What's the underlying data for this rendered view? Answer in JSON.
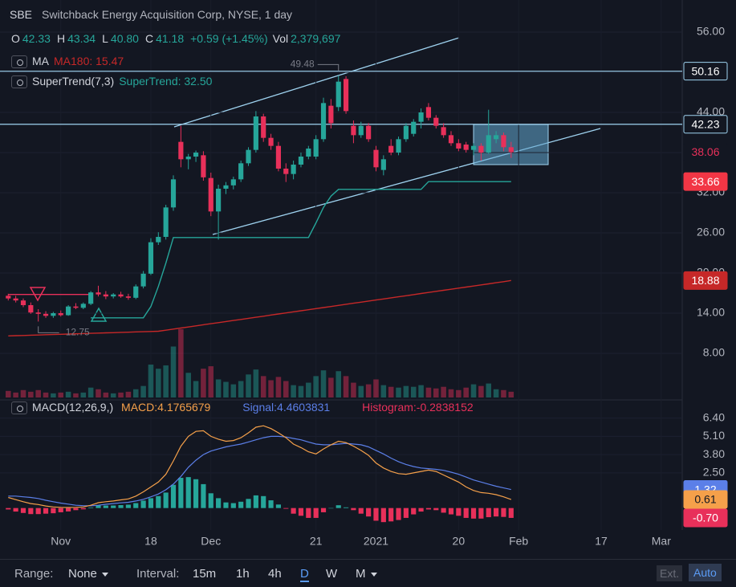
{
  "header": {
    "symbol": "SBE",
    "description": "Switchback Energy Acquisition Corp, NYSE, 1 day",
    "ohlc": [
      {
        "label": "O",
        "value": "42.33"
      },
      {
        "label": "H",
        "value": "43.34"
      },
      {
        "label": "L",
        "value": "40.80"
      },
      {
        "label": "C",
        "value": "41.18"
      }
    ],
    "change": "+0.59 (+1.45%)",
    "vol_label": "Vol",
    "vol": "2,379,697",
    "indicators": [
      {
        "name": "MA",
        "value": "MA180: 15.47",
        "color": "#c62828"
      },
      {
        "name": "SuperTrend(7,3)",
        "value": "SuperTrend: 32.50",
        "color": "#26a69a"
      }
    ]
  },
  "chart_data": [
    {
      "type": "candlestick",
      "xlim": [
        -1.1,
        89.8
      ],
      "xticks": [
        {
          "value": 7,
          "label": "Nov"
        },
        {
          "value": 19,
          "label": "18"
        },
        {
          "value": 27,
          "label": "Dec"
        },
        {
          "value": 41,
          "label": "21"
        },
        {
          "value": 49,
          "label": "2021"
        },
        {
          "value": 60,
          "label": "20"
        },
        {
          "value": 68,
          "label": "Feb"
        },
        {
          "value": 79,
          "label": "17"
        },
        {
          "value": 87,
          "label": "Mar"
        }
      ],
      "ylim": [
        1.16,
        60.8
      ],
      "yticks": [
        {
          "value": 8,
          "label": "8.00"
        },
        {
          "value": 14,
          "label": "14.00"
        },
        {
          "value": 20,
          "label": "20.00"
        },
        {
          "value": 26,
          "label": "26.00"
        },
        {
          "value": 32,
          "label": "32.00"
        },
        {
          "value": 38,
          "label": "38.00"
        },
        {
          "value": 44,
          "label": "44.00"
        },
        {
          "value": 50,
          "label": "50.00"
        },
        {
          "value": 56,
          "label": "56.00"
        }
      ],
      "up_color": "#26a69a",
      "down_color": "#e8305a",
      "open": [
        16.6,
        16.2,
        15.9,
        15.2,
        14.1,
        13.9,
        13.6,
        14.0,
        13.7,
        15.0,
        14.8,
        15.4,
        17.1,
        16.8,
        16.5,
        16.8,
        16.5,
        16.3,
        18.0,
        19.9,
        24.6,
        25.4,
        29.8,
        39.6,
        37.0,
        37.4,
        37.6,
        34.2,
        29.2,
        32.6,
        33.1,
        34.0,
        36.4,
        38.4,
        43.4,
        40.2,
        39.0,
        35.6,
        34.8,
        36.2,
        37.4,
        37.4,
        40.0,
        45.0,
        44.8,
        49.0,
        42.0,
        40.6,
        42.0,
        38.4,
        35.4,
        39.0,
        38.0,
        40.0,
        40.8,
        42.6,
        44.8,
        43.2,
        41.8,
        40.6,
        39.4,
        39.2,
        38.4,
        39.0,
        38.0,
        40.0,
        40.6,
        38.8
      ],
      "high": [
        16.9,
        16.6,
        16.2,
        15.6,
        14.6,
        14.3,
        14.2,
        14.4,
        15.2,
        15.5,
        15.6,
        17.3,
        18.1,
        17.3,
        17.0,
        17.2,
        16.9,
        18.3,
        20.3,
        25.2,
        26.1,
        30.2,
        34.6,
        42.0,
        37.8,
        38.3,
        38.2,
        35.0,
        33.2,
        33.6,
        34.4,
        36.8,
        38.8,
        44.2,
        43.8,
        40.8,
        39.6,
        36.4,
        36.8,
        38.0,
        39.0,
        40.6,
        46.2,
        46.0,
        49.48,
        49.4,
        42.8,
        42.6,
        42.4,
        39.0,
        37.6,
        40.0,
        40.4,
        42.4,
        43.0,
        44.6,
        45.4,
        43.6,
        42.4,
        41.2,
        40.0,
        39.6,
        39.4,
        39.4,
        44.4,
        41.2,
        41.0,
        39.6
      ],
      "low": [
        15.9,
        15.6,
        14.9,
        13.9,
        12.75,
        13.3,
        13.3,
        13.5,
        13.6,
        14.6,
        14.6,
        15.2,
        16.5,
        16.1,
        16.2,
        16.3,
        16.0,
        16.1,
        17.7,
        19.7,
        24.2,
        25.0,
        29.3,
        35.8,
        35.5,
        36.6,
        33.8,
        28.5,
        25.0,
        31.8,
        32.5,
        33.6,
        36.0,
        38.0,
        39.6,
        38.4,
        35.2,
        33.6,
        34.0,
        35.8,
        37.0,
        37.0,
        39.6,
        41.6,
        44.2,
        43.8,
        39.4,
        40.2,
        39.6,
        35.2,
        34.6,
        37.6,
        37.6,
        39.6,
        40.4,
        41.6,
        42.8,
        41.6,
        40.2,
        39.0,
        38.2,
        38.0,
        37.6,
        36.8,
        37.8,
        39.4,
        38.2,
        37.2
      ],
      "close": [
        16.2,
        15.9,
        15.2,
        14.1,
        13.9,
        13.6,
        14.0,
        13.7,
        15.0,
        14.8,
        15.4,
        17.1,
        16.8,
        16.5,
        16.8,
        16.5,
        16.3,
        18.0,
        19.9,
        24.6,
        25.4,
        29.8,
        34.0,
        37.0,
        37.4,
        38.0,
        34.3,
        29.2,
        32.6,
        33.1,
        34.0,
        36.4,
        38.4,
        43.4,
        40.2,
        39.0,
        35.6,
        34.8,
        36.2,
        37.4,
        38.6,
        40.0,
        45.4,
        42.4,
        48.6,
        44.2,
        40.6,
        42.0,
        40.0,
        35.8,
        37.0,
        38.0,
        40.0,
        42.0,
        42.6,
        44.0,
        43.2,
        42.0,
        40.6,
        39.4,
        38.6,
        38.4,
        39.0,
        38.0,
        40.6,
        40.6,
        38.8,
        38.06
      ],
      "volume": [
        0.8,
        0.6,
        0.9,
        0.7,
        0.9,
        0.6,
        0.5,
        0.6,
        0.7,
        0.5,
        0.6,
        1.2,
        1.0,
        0.6,
        0.5,
        0.6,
        0.7,
        1.0,
        1.4,
        4.0,
        3.5,
        3.9,
        6.2,
        8.3,
        3.0,
        2.0,
        3.5,
        3.8,
        2.2,
        1.9,
        1.6,
        2.0,
        2.8,
        3.4,
        2.6,
        2.1,
        2.5,
        2.0,
        1.5,
        1.4,
        1.8,
        2.6,
        3.3,
        2.4,
        3.2,
        2.6,
        1.8,
        1.4,
        1.6,
        2.2,
        1.5,
        1.3,
        1.2,
        1.4,
        1.3,
        1.5,
        1.2,
        1.1,
        1.3,
        1.0,
        0.9,
        1.2,
        1.6,
        1.4,
        1.7,
        1.0,
        0.9,
        0.7
      ],
      "ma": {
        "color": "#c62828",
        "values": [
          10.6,
          10.64,
          10.67,
          10.71,
          10.74,
          10.78,
          10.81,
          10.85,
          10.88,
          10.92,
          10.95,
          10.99,
          11.02,
          11.06,
          11.09,
          11.13,
          11.16,
          11.2,
          11.23,
          11.27,
          11.3,
          11.46,
          11.62,
          11.78,
          11.94,
          12.11,
          12.27,
          12.43,
          12.59,
          12.75,
          12.91,
          13.07,
          13.23,
          13.39,
          13.55,
          13.72,
          13.88,
          14.04,
          14.2,
          14.36,
          14.52,
          14.68,
          14.84,
          15.0,
          15.16,
          15.33,
          15.49,
          15.65,
          15.81,
          15.97,
          16.13,
          16.29,
          16.45,
          16.61,
          16.77,
          16.94,
          17.1,
          17.26,
          17.42,
          17.58,
          17.74,
          17.9,
          18.06,
          18.22,
          18.38,
          18.55,
          18.71,
          18.88
        ]
      },
      "supertrend_up": {
        "color": "#26a69a",
        "values": [
          null,
          null,
          null,
          null,
          null,
          null,
          null,
          null,
          null,
          null,
          null,
          13.3,
          13.3,
          13.3,
          13.3,
          13.3,
          13.3,
          13.3,
          13.3,
          15.0,
          18.0,
          21.5,
          25.3,
          25.3,
          25.3,
          25.3,
          25.3,
          25.3,
          25.3,
          25.3,
          25.3,
          25.3,
          25.3,
          25.3,
          25.3,
          25.3,
          25.3,
          25.3,
          25.3,
          25.3,
          25.3,
          27.5,
          29.8,
          31.5,
          32.5,
          32.5,
          32.5,
          32.5,
          32.5,
          32.5,
          32.5,
          32.5,
          32.5,
          32.5,
          32.5,
          32.5,
          33.66,
          33.66,
          33.66,
          33.66,
          33.66,
          33.66,
          33.66,
          33.66,
          33.66,
          33.66,
          33.66,
          33.66
        ]
      },
      "supertrend_down": {
        "color": "#e8305a",
        "values": [
          16.8,
          16.8,
          16.8,
          16.8,
          16.8,
          16.8,
          16.8,
          16.8,
          16.8,
          16.8,
          16.8,
          16.8,
          null,
          null,
          null,
          null,
          null,
          null,
          null,
          null,
          null,
          null,
          null,
          null,
          null,
          null,
          null,
          null,
          null,
          null,
          null,
          null,
          null,
          null,
          null,
          null,
          null,
          null,
          null,
          null,
          null,
          null,
          null,
          null,
          null,
          null,
          null,
          null,
          null,
          null,
          null,
          null,
          null,
          null,
          null,
          null,
          null,
          null,
          null,
          null,
          null,
          null,
          null,
          null,
          null,
          null,
          null,
          null
        ]
      },
      "price_lines": [
        {
          "value": 50.16,
          "color": "#9fd3f0"
        },
        {
          "value": 42.23,
          "color": "#9fd3f0"
        }
      ]
    },
    {
      "type": "macd",
      "title": "MACD(12,26,9,)",
      "macd_text": "MACD:4.1765679",
      "signal_text": "Signal:4.4603831",
      "histogram_text": "Histogram:-0.2838152",
      "ylim": [
        -1.56,
        7.69
      ],
      "yticks": [
        {
          "value": 2.5,
          "label": "2.50"
        },
        {
          "value": 3.8,
          "label": "3.80"
        },
        {
          "value": 5.1,
          "label": "5.10"
        },
        {
          "value": 6.4,
          "label": "6.40"
        }
      ],
      "macd": {
        "color": "#f5a04a",
        "values": [
          0.75,
          0.6,
          0.45,
          0.32,
          0.25,
          0.15,
          0.08,
          0.05,
          0.04,
          0.05,
          0.08,
          0.2,
          0.38,
          0.45,
          0.5,
          0.58,
          0.65,
          0.85,
          1.15,
          1.5,
          1.85,
          2.4,
          3.35,
          4.4,
          5.1,
          5.45,
          5.5,
          5.1,
          4.9,
          4.75,
          4.8,
          5.0,
          5.35,
          5.75,
          5.85,
          5.65,
          5.35,
          5.0,
          4.55,
          4.3,
          4.0,
          3.85,
          4.2,
          4.5,
          4.75,
          4.65,
          4.4,
          4.1,
          3.75,
          3.2,
          2.85,
          2.6,
          2.45,
          2.4,
          2.5,
          2.6,
          2.7,
          2.6,
          2.35,
          2.1,
          1.85,
          1.5,
          1.25,
          1.1,
          1.05,
          0.95,
          0.8,
          0.61
        ]
      },
      "signal": {
        "color": "#5b7fe8",
        "values": [
          0.85,
          0.85,
          0.8,
          0.75,
          0.68,
          0.55,
          0.45,
          0.35,
          0.28,
          0.2,
          0.17,
          0.16,
          0.2,
          0.27,
          0.32,
          0.37,
          0.41,
          0.5,
          0.62,
          0.8,
          1.0,
          1.3,
          1.7,
          2.25,
          2.9,
          3.4,
          3.8,
          4.05,
          4.2,
          4.35,
          4.45,
          4.55,
          4.7,
          4.85,
          5.0,
          5.1,
          5.1,
          5.05,
          4.95,
          4.85,
          4.7,
          4.55,
          4.5,
          4.5,
          4.55,
          4.6,
          4.55,
          4.5,
          4.35,
          4.1,
          3.85,
          3.55,
          3.3,
          3.1,
          2.95,
          2.85,
          2.8,
          2.75,
          2.68,
          2.55,
          2.4,
          2.2,
          2.0,
          1.85,
          1.7,
          1.55,
          1.43,
          1.32
        ]
      },
      "histogram": {
        "up_color": "#26a69a",
        "down_color": "#e8305a",
        "values": [
          -0.1,
          -0.25,
          -0.35,
          -0.43,
          -0.43,
          -0.4,
          -0.37,
          -0.3,
          -0.24,
          -0.15,
          -0.09,
          0.04,
          0.18,
          0.18,
          0.18,
          0.21,
          0.24,
          0.35,
          0.53,
          0.7,
          0.85,
          1.1,
          1.65,
          2.15,
          2.2,
          2.05,
          1.7,
          1.05,
          0.7,
          0.4,
          0.35,
          0.45,
          0.65,
          0.9,
          0.85,
          0.55,
          0.25,
          -0.05,
          -0.4,
          -0.55,
          -0.7,
          -0.7,
          -0.3,
          0,
          0.2,
          0.05,
          -0.15,
          -0.4,
          -0.6,
          -0.9,
          -1.0,
          -0.95,
          -0.85,
          -0.7,
          -0.45,
          -0.25,
          -0.1,
          -0.15,
          -0.33,
          -0.45,
          -0.55,
          -0.7,
          -0.75,
          -0.75,
          -0.65,
          -0.6,
          -0.63,
          -0.7
        ],
        "value_labels": [
          null,
          null,
          null,
          null,
          null,
          null,
          null,
          null,
          null,
          null,
          null,
          null,
          null,
          null,
          null,
          null,
          null,
          null,
          null,
          null,
          null,
          null,
          null,
          null,
          null,
          null,
          null,
          null,
          null,
          null,
          null,
          null,
          null,
          null,
          null,
          null,
          null,
          null,
          null,
          null,
          null,
          null,
          null,
          null,
          null,
          null,
          null,
          null,
          null,
          null,
          null,
          null,
          null,
          null,
          null,
          null,
          null,
          null,
          null,
          null,
          null,
          null,
          null,
          null,
          null,
          null,
          null,
          "-0.70"
        ]
      }
    }
  ],
  "toolbar": {
    "range_label": "Range:",
    "range_value": "None",
    "interval_label": "Interval:",
    "intervals": [
      "15m",
      "1h",
      "4h",
      "D",
      "W",
      "M"
    ],
    "ext": "Ext.",
    "auto": "Auto"
  }
}
